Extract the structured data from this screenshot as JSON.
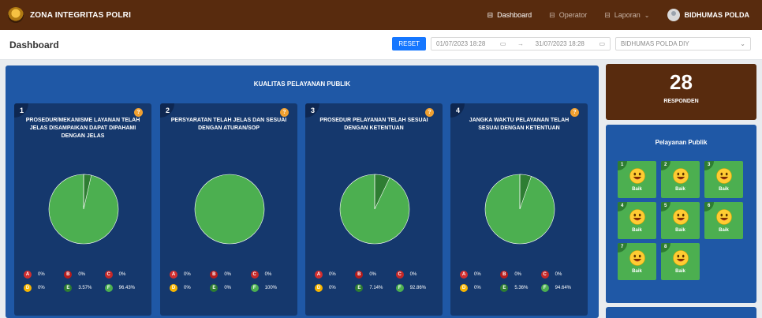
{
  "navbar": {
    "brand": "ZONA INTEGRITAS POLRI",
    "items": [
      {
        "label": "Dashboard",
        "icon": "dashboard-icon",
        "active": true
      },
      {
        "label": "Operator",
        "icon": "operator-icon",
        "active": false
      },
      {
        "label": "Laporan",
        "icon": "report-icon",
        "active": false
      }
    ],
    "user": "BIDHUMAS POLDA"
  },
  "subheader": {
    "title": "Dashboard",
    "reset_label": "RESET",
    "date_start": "01/07/2023 18:28",
    "date_end": "31/07/2023 18:28",
    "date_separator": "→",
    "select_value": "BIDHUMAS POLDA DIY"
  },
  "main": {
    "title": "KUALITAS PELAYANAN PUBLIK",
    "cards": [
      {
        "num": "1",
        "title": "PROSEDUR/MEKANISME LAYANAN TELAH JELAS DISAMPAIKAN DAPAT DIPAHAMI DENGAN JELAS",
        "legend": [
          {
            "k": "A",
            "v": "0%"
          },
          {
            "k": "B",
            "v": "0%"
          },
          {
            "k": "C",
            "v": "0%"
          },
          {
            "k": "D",
            "v": "0%"
          },
          {
            "k": "E",
            "v": "3.57%"
          },
          {
            "k": "F",
            "v": "96.43%"
          }
        ],
        "pie": {
          "E": 3.57,
          "F": 96.43
        }
      },
      {
        "num": "2",
        "title": "PERSYARATAN TELAH JELAS DAN SESUAI DENGAN ATURAN/SOP",
        "legend": [
          {
            "k": "A",
            "v": "0%"
          },
          {
            "k": "B",
            "v": "0%"
          },
          {
            "k": "C",
            "v": "0%"
          },
          {
            "k": "D",
            "v": "0%"
          },
          {
            "k": "E",
            "v": "0%"
          },
          {
            "k": "F",
            "v": "100%"
          }
        ],
        "pie": {
          "E": 0,
          "F": 100
        }
      },
      {
        "num": "3",
        "title": "PROSEDUR PELAYANAN TELAH SESUAI DENGAN KETENTUAN",
        "legend": [
          {
            "k": "A",
            "v": "0%"
          },
          {
            "k": "B",
            "v": "0%"
          },
          {
            "k": "C",
            "v": "0%"
          },
          {
            "k": "D",
            "v": "0%"
          },
          {
            "k": "E",
            "v": "7.14%"
          },
          {
            "k": "F",
            "v": "92.86%"
          }
        ],
        "pie": {
          "E": 7.14,
          "F": 92.86
        }
      },
      {
        "num": "4",
        "title": "JANGKA WAKTU PELAYANAN TELAH SESUAI DENGAN KETENTUAN",
        "legend": [
          {
            "k": "A",
            "v": "0%"
          },
          {
            "k": "B",
            "v": "0%"
          },
          {
            "k": "C",
            "v": "0%"
          },
          {
            "k": "D",
            "v": "0%"
          },
          {
            "k": "E",
            "v": "5.36%"
          },
          {
            "k": "F",
            "v": "94.64%"
          }
        ],
        "pie": {
          "E": 5.36,
          "F": 94.64
        }
      }
    ],
    "help_glyph": "?"
  },
  "responden": {
    "count": "28",
    "label": "RESPONDEN"
  },
  "pelayanan": {
    "title": "Pelayanan Publik",
    "tiles": [
      {
        "num": "1",
        "label": "Baik"
      },
      {
        "num": "2",
        "label": "Baik"
      },
      {
        "num": "3",
        "label": "Baik"
      },
      {
        "num": "4",
        "label": "Baik"
      },
      {
        "num": "5",
        "label": "Baik"
      },
      {
        "num": "6",
        "label": "Baik"
      },
      {
        "num": "7",
        "label": "Baik"
      },
      {
        "num": "8",
        "label": "Baik"
      }
    ]
  },
  "colors": {
    "A": "#d32f2f",
    "B": "#b71c1c",
    "C": "#c62828",
    "D": "#f5b400",
    "E": "#2e7d32",
    "F": "#4caf50",
    "navbar": "#582b0e",
    "panel": "#1f58a6",
    "card": "#15386d"
  }
}
